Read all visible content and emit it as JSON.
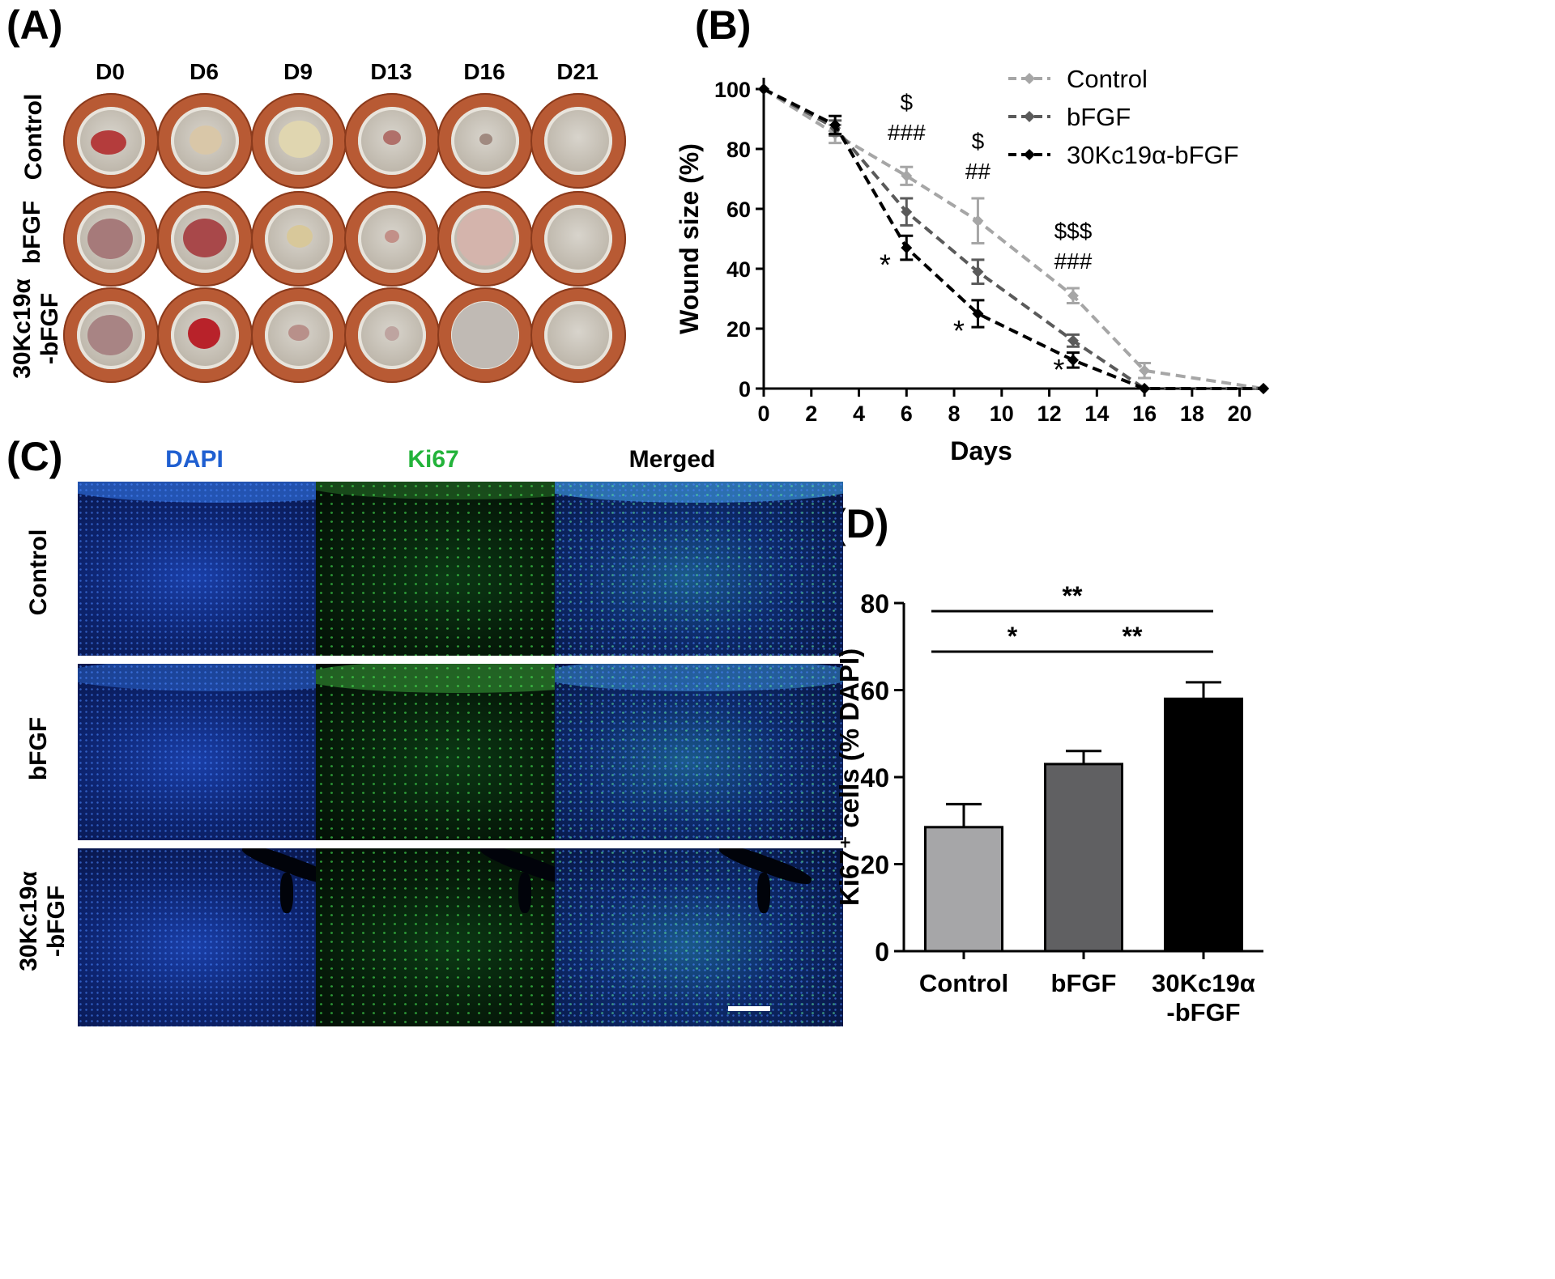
{
  "panels": {
    "a": "(A)",
    "b": "(B)",
    "c": "(C)",
    "d": "(D)"
  },
  "panel_a": {
    "days": [
      "D0",
      "D6",
      "D9",
      "D13",
      "D16",
      "D21"
    ],
    "rows": [
      "Control",
      "bFGF",
      "30Kc19α\n-bFGF"
    ]
  },
  "panel_c": {
    "channels": [
      {
        "label": "DAPI",
        "color": "#1f5fd1"
      },
      {
        "label": "Ki67",
        "color": "#23b33a"
      },
      {
        "label": "Merged",
        "color": "#000000"
      }
    ],
    "rows": [
      "Control",
      "bFGF",
      "30Kc19α\n-bFGF"
    ]
  },
  "chart_data": [
    {
      "type": "line",
      "xlabel": "Days",
      "ylabel": "Wound size (%)",
      "xlim": [
        0,
        21
      ],
      "ylim": [
        0,
        100
      ],
      "xticks": [
        0,
        2,
        4,
        6,
        8,
        10,
        12,
        14,
        16,
        18,
        20
      ],
      "yticks": [
        0,
        20,
        40,
        60,
        80,
        100
      ],
      "legend_position": "top-right",
      "series": [
        {
          "name": "Control",
          "color": "#a6a6a6",
          "x": [
            0,
            3,
            6,
            9,
            13,
            16,
            21
          ],
          "y": [
            100,
            85,
            71,
            56,
            31,
            6,
            0
          ],
          "err": [
            0,
            3,
            3,
            7.5,
            2.5,
            2.5,
            0
          ]
        },
        {
          "name": "bFGF",
          "color": "#5a5a5a",
          "x": [
            0,
            3,
            6,
            9,
            13,
            16,
            21
          ],
          "y": [
            100,
            87,
            59,
            39,
            16,
            0,
            0
          ],
          "err": [
            0,
            2.5,
            4.5,
            4,
            2,
            0,
            0
          ]
        },
        {
          "name": "30Kc19α-bFGF",
          "color": "#000000",
          "x": [
            0,
            3,
            6,
            9,
            13,
            16,
            21
          ],
          "y": [
            100,
            88,
            47,
            25,
            9.5,
            0,
            0
          ],
          "err": [
            0,
            3,
            4,
            4.5,
            2.5,
            0,
            0
          ]
        }
      ],
      "annotations": [
        {
          "text": "$",
          "x": 6,
          "y": 93
        },
        {
          "text": "###",
          "x": 6,
          "y": 83
        },
        {
          "text": "$",
          "x": 9,
          "y": 80
        },
        {
          "text": "##",
          "x": 9,
          "y": 70
        },
        {
          "text": "$$$",
          "x": 13,
          "y": 50
        },
        {
          "text": "###",
          "x": 13,
          "y": 40
        },
        {
          "text": "*",
          "x": 5.1,
          "y": 38
        },
        {
          "text": "*",
          "x": 8.2,
          "y": 16
        },
        {
          "text": "*",
          "x": 12.4,
          "y": 3
        }
      ]
    },
    {
      "type": "bar",
      "categories": [
        "Control",
        "bFGF",
        "30Kc19α\n-bFGF"
      ],
      "values": [
        28.5,
        43,
        58
      ],
      "errors": [
        5.3,
        3.0,
        3.8
      ],
      "colors": [
        "#a6a6a8",
        "#606062",
        "#000000"
      ],
      "ylabel": "Ki67⁺ cells (% DAPI)",
      "ylim": [
        0,
        80
      ],
      "yticks": [
        0,
        20,
        40,
        60,
        80
      ],
      "significance": [
        {
          "from": 0,
          "to": 2,
          "label": "**",
          "level": 1
        },
        {
          "from": 0,
          "to": 1,
          "label": "*",
          "level": 0
        },
        {
          "from": 1,
          "to": 2,
          "label": "**",
          "level": 0
        }
      ]
    }
  ]
}
